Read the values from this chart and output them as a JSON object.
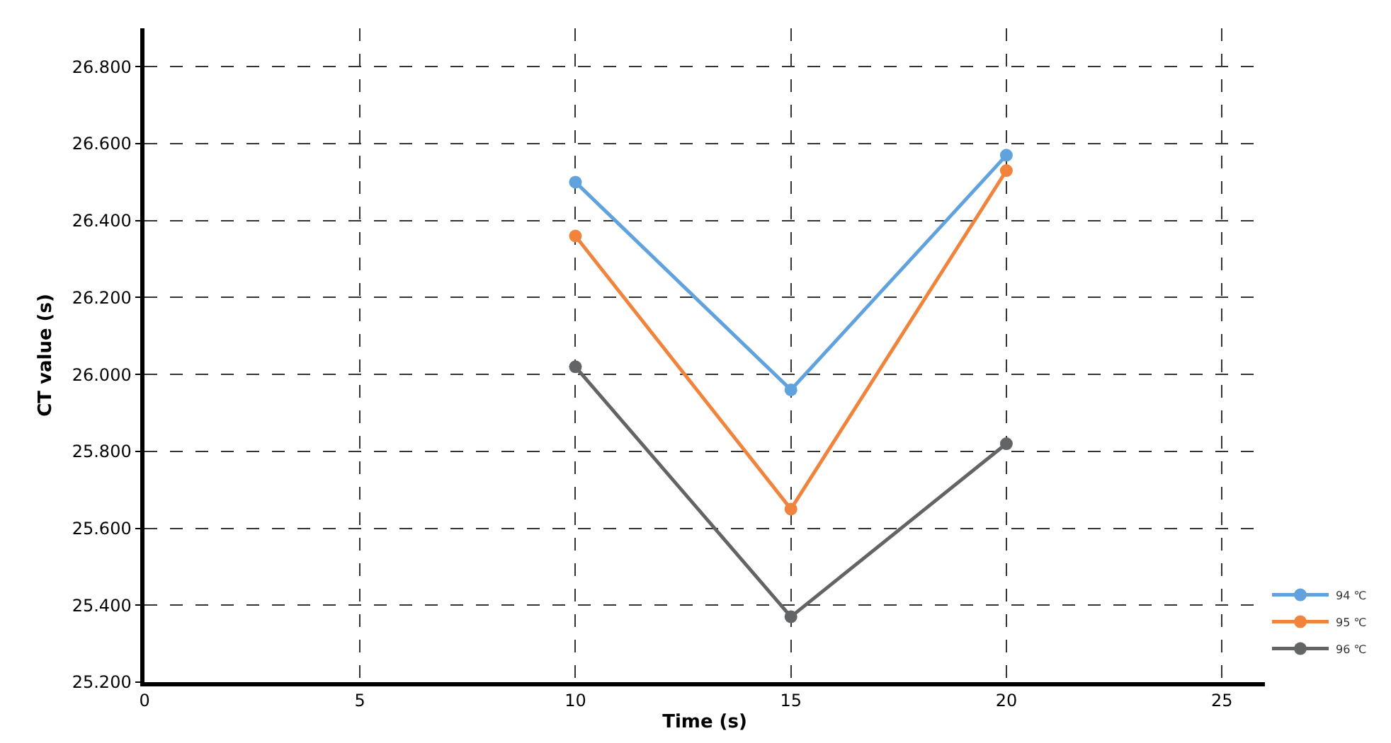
{
  "chart_data": {
    "type": "line",
    "xlabel": "Time (s)",
    "ylabel": "CT value (s)",
    "x": [
      10,
      15,
      20
    ],
    "series": [
      {
        "name": "94 ℃",
        "color": "#5fa2dd",
        "values": [
          26.5,
          25.96,
          26.57
        ]
      },
      {
        "name": "95 ℃",
        "color": "#f0843c",
        "values": [
          26.36,
          25.65,
          26.53
        ]
      },
      {
        "name": "96 ℃",
        "color": "#636466",
        "values": [
          26.02,
          25.37,
          25.82
        ]
      }
    ],
    "xlim": [
      0,
      26
    ],
    "xticks": [
      0,
      5,
      10,
      15,
      20,
      25
    ],
    "ylim": [
      25.2,
      26.9
    ],
    "yticks": [
      {
        "value": 25.2,
        "label": "25.200"
      },
      {
        "value": 25.4,
        "label": "25.400"
      },
      {
        "value": 25.6,
        "label": "25.600"
      },
      {
        "value": 25.8,
        "label": "25.800"
      },
      {
        "value": 26.0,
        "label": "26.000"
      },
      {
        "value": 26.2,
        "label": "26.200"
      },
      {
        "value": 26.4,
        "label": "26.400"
      },
      {
        "value": 26.6,
        "label": "26.600"
      },
      {
        "value": 26.8,
        "label": "26.800"
      }
    ],
    "grid": true,
    "legend": "bottom right",
    "marker": "circle",
    "line_style": "solid"
  }
}
